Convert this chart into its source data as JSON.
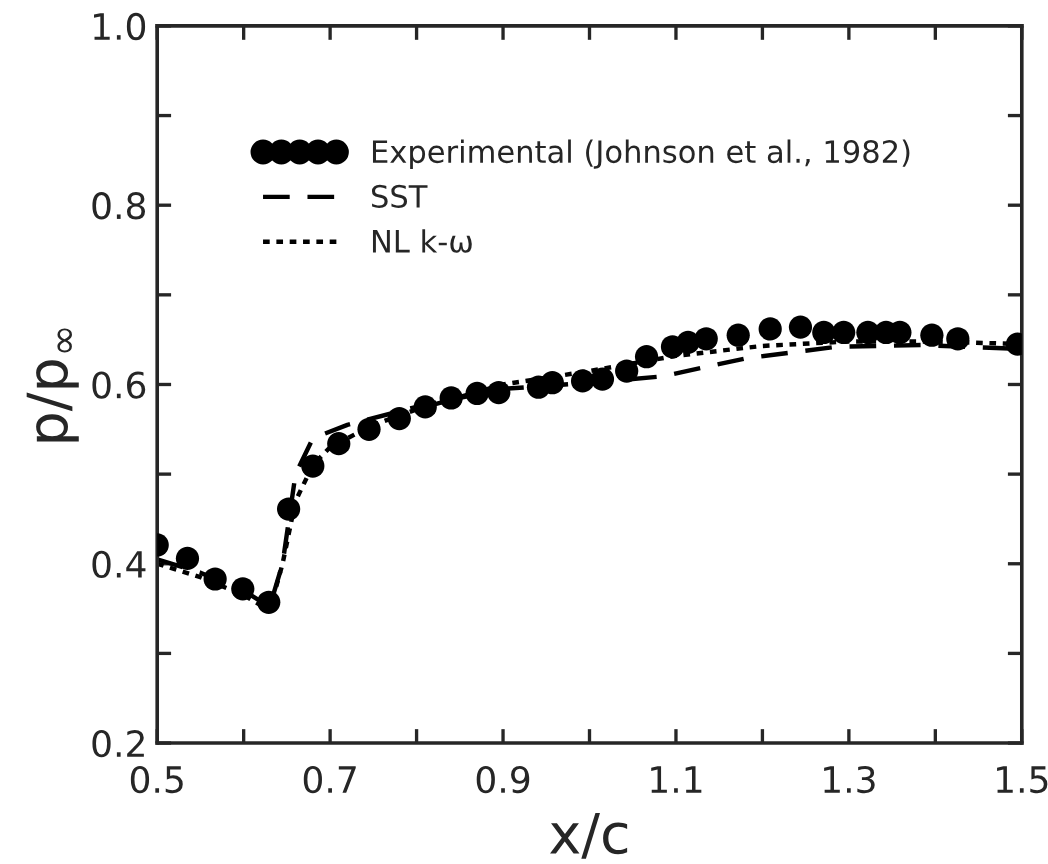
{
  "chart_data": {
    "type": "line",
    "xlabel": "x/c",
    "ylabel": "p/p$_{∞}$",
    "xlim": [
      0.5,
      1.5
    ],
    "ylim": [
      0.2,
      1.0
    ],
    "xticks": [
      0.5,
      {
        "value": 0.6,
        "label": null
      },
      0.7,
      {
        "value": 0.8,
        "label": null
      },
      0.9,
      {
        "value": 1.0,
        "label": null
      },
      1.1,
      {
        "value": 1.2,
        "label": null
      },
      1.3,
      {
        "value": 1.4,
        "label": null
      },
      1.5
    ],
    "yticks": [
      0.2,
      {
        "value": 0.3,
        "label": null
      },
      0.4,
      {
        "value": 0.5,
        "label": null
      },
      0.6,
      {
        "value": 0.7,
        "label": null
      },
      0.8,
      {
        "value": 0.9,
        "label": null
      },
      {
        "value": 1.0,
        "label": "1.0"
      }
    ],
    "legend": "top left",
    "grid": false,
    "series": [
      {
        "name": "Experimental (Johnson et al., 1982)",
        "type": "scatter",
        "marker": "circle",
        "color": "#000000",
        "x": [
          0.5,
          0.535,
          0.567,
          0.599,
          0.629,
          0.652,
          0.68,
          0.71,
          0.745,
          0.78,
          0.81,
          0.84,
          0.87,
          0.895,
          0.941,
          0.957,
          0.992,
          1.015,
          1.043,
          1.066,
          1.096,
          1.114,
          1.135,
          1.172,
          1.209,
          1.244,
          1.271,
          1.294,
          1.322,
          1.343,
          1.359,
          1.396,
          1.426,
          1.495
        ],
        "values": [
          0.421,
          0.406,
          0.383,
          0.372,
          0.357,
          0.461,
          0.509,
          0.534,
          0.55,
          0.562,
          0.575,
          0.585,
          0.59,
          0.591,
          0.597,
          0.602,
          0.604,
          0.606,
          0.615,
          0.631,
          0.642,
          0.647,
          0.651,
          0.655,
          0.662,
          0.664,
          0.658,
          0.658,
          0.658,
          0.658,
          0.658,
          0.655,
          0.651,
          0.645
        ]
      },
      {
        "name": "SST",
        "line_style": "dashed",
        "color": "#000000",
        "x": [
          0.5,
          0.55,
          0.6,
          0.63,
          0.645,
          0.66,
          0.68,
          0.72,
          0.8,
          0.9,
          1.0,
          1.084,
          1.18,
          1.285,
          1.385,
          1.49,
          1.5
        ],
        "values": [
          0.405,
          0.39,
          0.37,
          0.352,
          0.4,
          0.5,
          0.54,
          0.555,
          0.575,
          0.595,
          0.602,
          0.609,
          0.629,
          0.642,
          0.644,
          0.64,
          0.64
        ]
      },
      {
        "name": "NL k-ω",
        "line_style": "dotted",
        "color": "#000000",
        "x": [
          0.5,
          0.55,
          0.6,
          0.63,
          0.645,
          0.66,
          0.68,
          0.7,
          0.75,
          0.8,
          0.9,
          1.0,
          1.1,
          1.2,
          1.3,
          1.4,
          1.5
        ],
        "values": [
          0.4,
          0.385,
          0.365,
          0.348,
          0.4,
          0.47,
          0.51,
          0.53,
          0.555,
          0.572,
          0.6,
          0.615,
          0.632,
          0.643,
          0.648,
          0.648,
          0.645
        ]
      }
    ]
  }
}
